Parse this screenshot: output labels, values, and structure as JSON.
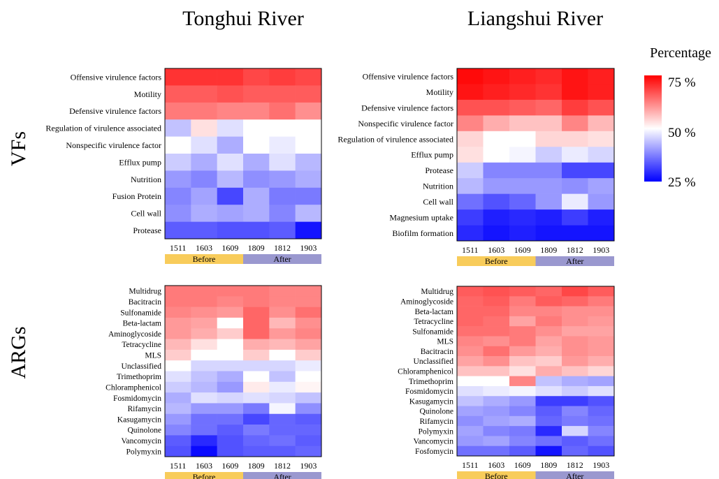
{
  "column_titles": [
    "Tonghui River",
    "Liangshui River"
  ],
  "row_titles": [
    "VFs",
    "ARGs"
  ],
  "legend": {
    "title": "Percentage",
    "ticks": [
      "75 %",
      "50 %",
      "25 %"
    ],
    "min": 25,
    "mid": 50,
    "max": 75,
    "colors": {
      "low": "#0000ff",
      "mid": "#ffffff",
      "high": "#ff0000"
    }
  },
  "samples": [
    "1511",
    "1603",
    "1609",
    "1809",
    "1812",
    "1903"
  ],
  "groups": [
    {
      "label": "Before",
      "color": "#f8cc5b"
    },
    {
      "label": "After",
      "color": "#9a98cf"
    }
  ],
  "chart_data": [
    {
      "type": "heatmap",
      "title": "Tonghui River",
      "row_title": "VFs",
      "x": [
        "1511",
        "1603",
        "1609",
        "1809",
        "1812",
        "1903"
      ],
      "y": [
        "Offensive virulence factors",
        "Motility",
        "Defensive virulence factors",
        "Regulation of virulence associated",
        "Nonspecific virulence factor",
        "Efflux pump",
        "Nutrition",
        "Fusion Protein",
        "Cell wall",
        "Protease"
      ],
      "values": [
        [
          70,
          70,
          70,
          68,
          69,
          68
        ],
        [
          66,
          66,
          67,
          66,
          66,
          66
        ],
        [
          63,
          63,
          62,
          62,
          64,
          61
        ],
        [
          44,
          53,
          47,
          50,
          50,
          50
        ],
        [
          50,
          47,
          42,
          50,
          48,
          50
        ],
        [
          45,
          42,
          47,
          42,
          47,
          43
        ],
        [
          40,
          38,
          43,
          39,
          40,
          42
        ],
        [
          38,
          41,
          32,
          42,
          37,
          37
        ],
        [
          39,
          42,
          41,
          42,
          38,
          43
        ],
        [
          34,
          34,
          33,
          33,
          34,
          27
        ]
      ]
    },
    {
      "type": "heatmap",
      "title": "Liangshui River",
      "row_title": "VFs",
      "x": [
        "1511",
        "1603",
        "1609",
        "1809",
        "1812",
        "1903"
      ],
      "y": [
        "Offensive virulence factors",
        "Motility",
        "Defensive virulence factors",
        "Nonspecific virulence factor",
        "Regulation of virulence associated",
        "Efflux pump",
        "Protease",
        "Nutrition",
        "Cell wall",
        "Magnesium uptake",
        "Biofilm formation"
      ],
      "values": [
        [
          74,
          73,
          72,
          71,
          73,
          72
        ],
        [
          73,
          72,
          71,
          70,
          73,
          72
        ],
        [
          67,
          67,
          66,
          65,
          69,
          67
        ],
        [
          62,
          58,
          56,
          56,
          62,
          57
        ],
        [
          54,
          50,
          50,
          54,
          54,
          53
        ],
        [
          53,
          50,
          49,
          45,
          48,
          46
        ],
        [
          45,
          38,
          38,
          38,
          32,
          32
        ],
        [
          43,
          40,
          40,
          40,
          39,
          41
        ],
        [
          36,
          33,
          35,
          40,
          48,
          40
        ],
        [
          31,
          28,
          29,
          28,
          31,
          28
        ],
        [
          29,
          27,
          28,
          27,
          27,
          27
        ]
      ]
    },
    {
      "type": "heatmap",
      "title": "Tonghui River",
      "row_title": "ARGs",
      "x": [
        "1511",
        "1603",
        "1609",
        "1809",
        "1812",
        "1903"
      ],
      "y": [
        "Multidrug",
        "Bacitracin",
        "Sulfonamide",
        "Beta-lactam",
        "Aminoglycoside",
        "Tetracycline",
        "MLS",
        "Unclassified",
        "Trimethoprim",
        "Chloramphenicol",
        "Fosmidomycin",
        "Rifamycin",
        "Kasugamycin",
        "Quinolone",
        "Vancomycin",
        "Polymyxin"
      ],
      "values": [
        [
          63,
          63,
          63,
          63,
          62,
          62
        ],
        [
          63,
          63,
          62,
          63,
          62,
          62
        ],
        [
          62,
          61,
          60,
          65,
          61,
          64
        ],
        [
          60,
          59,
          50,
          65,
          57,
          61
        ],
        [
          60,
          58,
          55,
          65,
          60,
          62
        ],
        [
          57,
          53,
          50,
          58,
          57,
          59
        ],
        [
          55,
          50,
          50,
          55,
          50,
          55
        ],
        [
          50,
          46,
          46,
          46,
          46,
          48
        ],
        [
          47,
          44,
          42,
          50,
          44,
          50
        ],
        [
          45,
          43,
          40,
          52,
          48,
          51
        ],
        [
          42,
          47,
          46,
          47,
          46,
          44
        ],
        [
          43,
          40,
          40,
          37,
          49,
          39
        ],
        [
          40,
          36,
          36,
          32,
          35,
          34
        ],
        [
          38,
          36,
          34,
          37,
          35,
          35
        ],
        [
          34,
          29,
          33,
          35,
          36,
          34
        ],
        [
          33,
          26,
          33,
          34,
          34,
          35
        ]
      ]
    },
    {
      "type": "heatmap",
      "title": "Liangshui River",
      "row_title": "ARGs",
      "x": [
        "1511",
        "1603",
        "1609",
        "1809",
        "1812",
        "1903"
      ],
      "y": [
        "Multidrug",
        "Aminoglycoside",
        "Beta-lactam",
        "Tetracycline",
        "Sulfonamide",
        "MLS",
        "Bacitracin",
        "Unclassified",
        "Chloramphenicol",
        "Trimethoprim",
        "Fosmidomycin",
        "Kasugamycin",
        "Quinolone",
        "Rifamycin",
        "Polymyxin",
        "Vancomycin",
        "Fosfomycin"
      ],
      "values": [
        [
          66,
          67,
          66,
          65,
          68,
          66
        ],
        [
          65,
          66,
          63,
          66,
          65,
          63
        ],
        [
          65,
          65,
          62,
          62,
          61,
          61
        ],
        [
          65,
          64,
          59,
          63,
          61,
          60
        ],
        [
          64,
          64,
          63,
          61,
          59,
          59
        ],
        [
          62,
          61,
          63,
          59,
          61,
          60
        ],
        [
          61,
          64,
          60,
          58,
          61,
          60
        ],
        [
          59,
          61,
          56,
          55,
          60,
          58
        ],
        [
          56,
          56,
          53,
          58,
          56,
          54
        ],
        [
          50,
          50,
          62,
          44,
          42,
          41
        ],
        [
          47,
          48,
          49,
          47,
          45,
          47
        ],
        [
          44,
          42,
          40,
          31,
          31,
          33
        ],
        [
          41,
          40,
          38,
          34,
          38,
          35
        ],
        [
          39,
          41,
          42,
          35,
          37,
          36
        ],
        [
          41,
          38,
          37,
          29,
          46,
          38
        ],
        [
          40,
          41,
          38,
          36,
          34,
          36
        ],
        [
          36,
          36,
          34,
          27,
          35,
          33
        ]
      ]
    }
  ]
}
